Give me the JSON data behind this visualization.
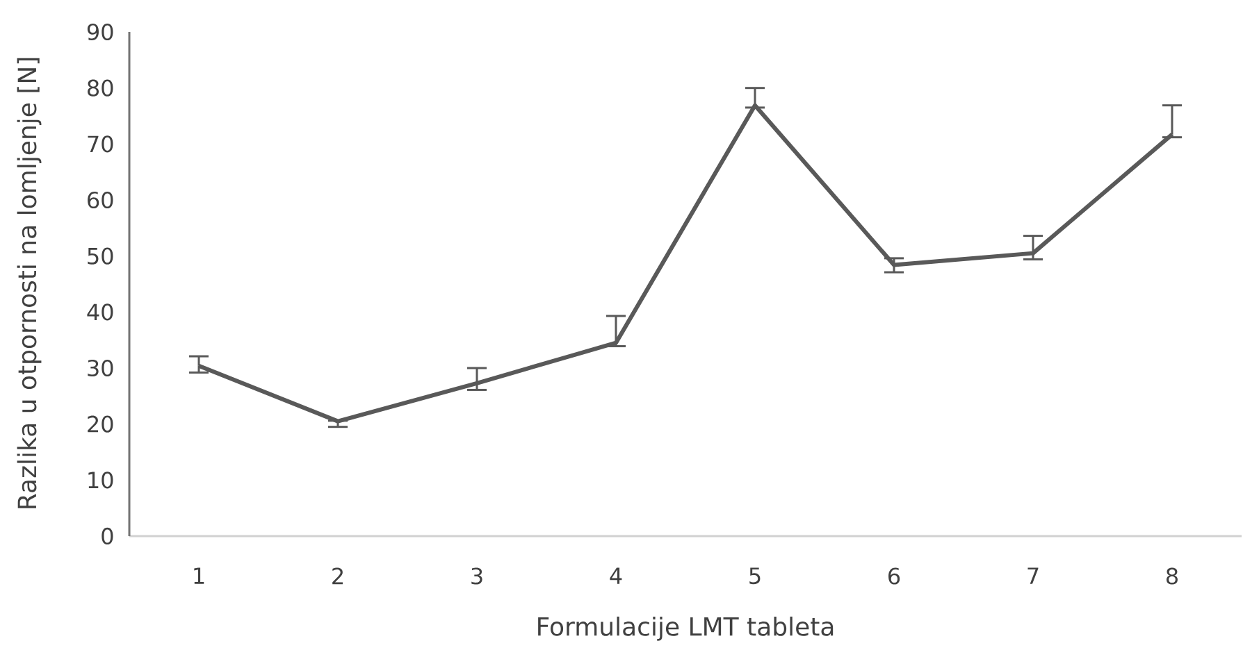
{
  "chart_data": {
    "type": "line",
    "xlabel": "Formulacije LMT tableta",
    "ylabel": "Razlika u otpornosti na lomljenje [N]",
    "categories": [
      "1",
      "2",
      "3",
      "4",
      "5",
      "6",
      "7",
      "8"
    ],
    "series": [
      {
        "color": "#595959",
        "values": [
          30.4,
          20.5,
          27.3,
          34.5,
          76.9,
          48.4,
          50.5,
          71.7
        ],
        "errors": [
          [
            29.2,
            32.1
          ],
          [
            19.5,
            20.6
          ],
          [
            26.1,
            30.0
          ],
          [
            33.9,
            39.3
          ],
          [
            76.5,
            80.0
          ],
          [
            47.1,
            49.6
          ],
          [
            49.4,
            53.6
          ],
          [
            71.2,
            76.9
          ]
        ]
      }
    ],
    "ylim": [
      0,
      90
    ],
    "yticks": [
      0,
      10,
      20,
      30,
      40,
      50,
      60,
      70,
      80,
      90
    ],
    "grid": false,
    "marker": "none",
    "line_style": "solid"
  }
}
